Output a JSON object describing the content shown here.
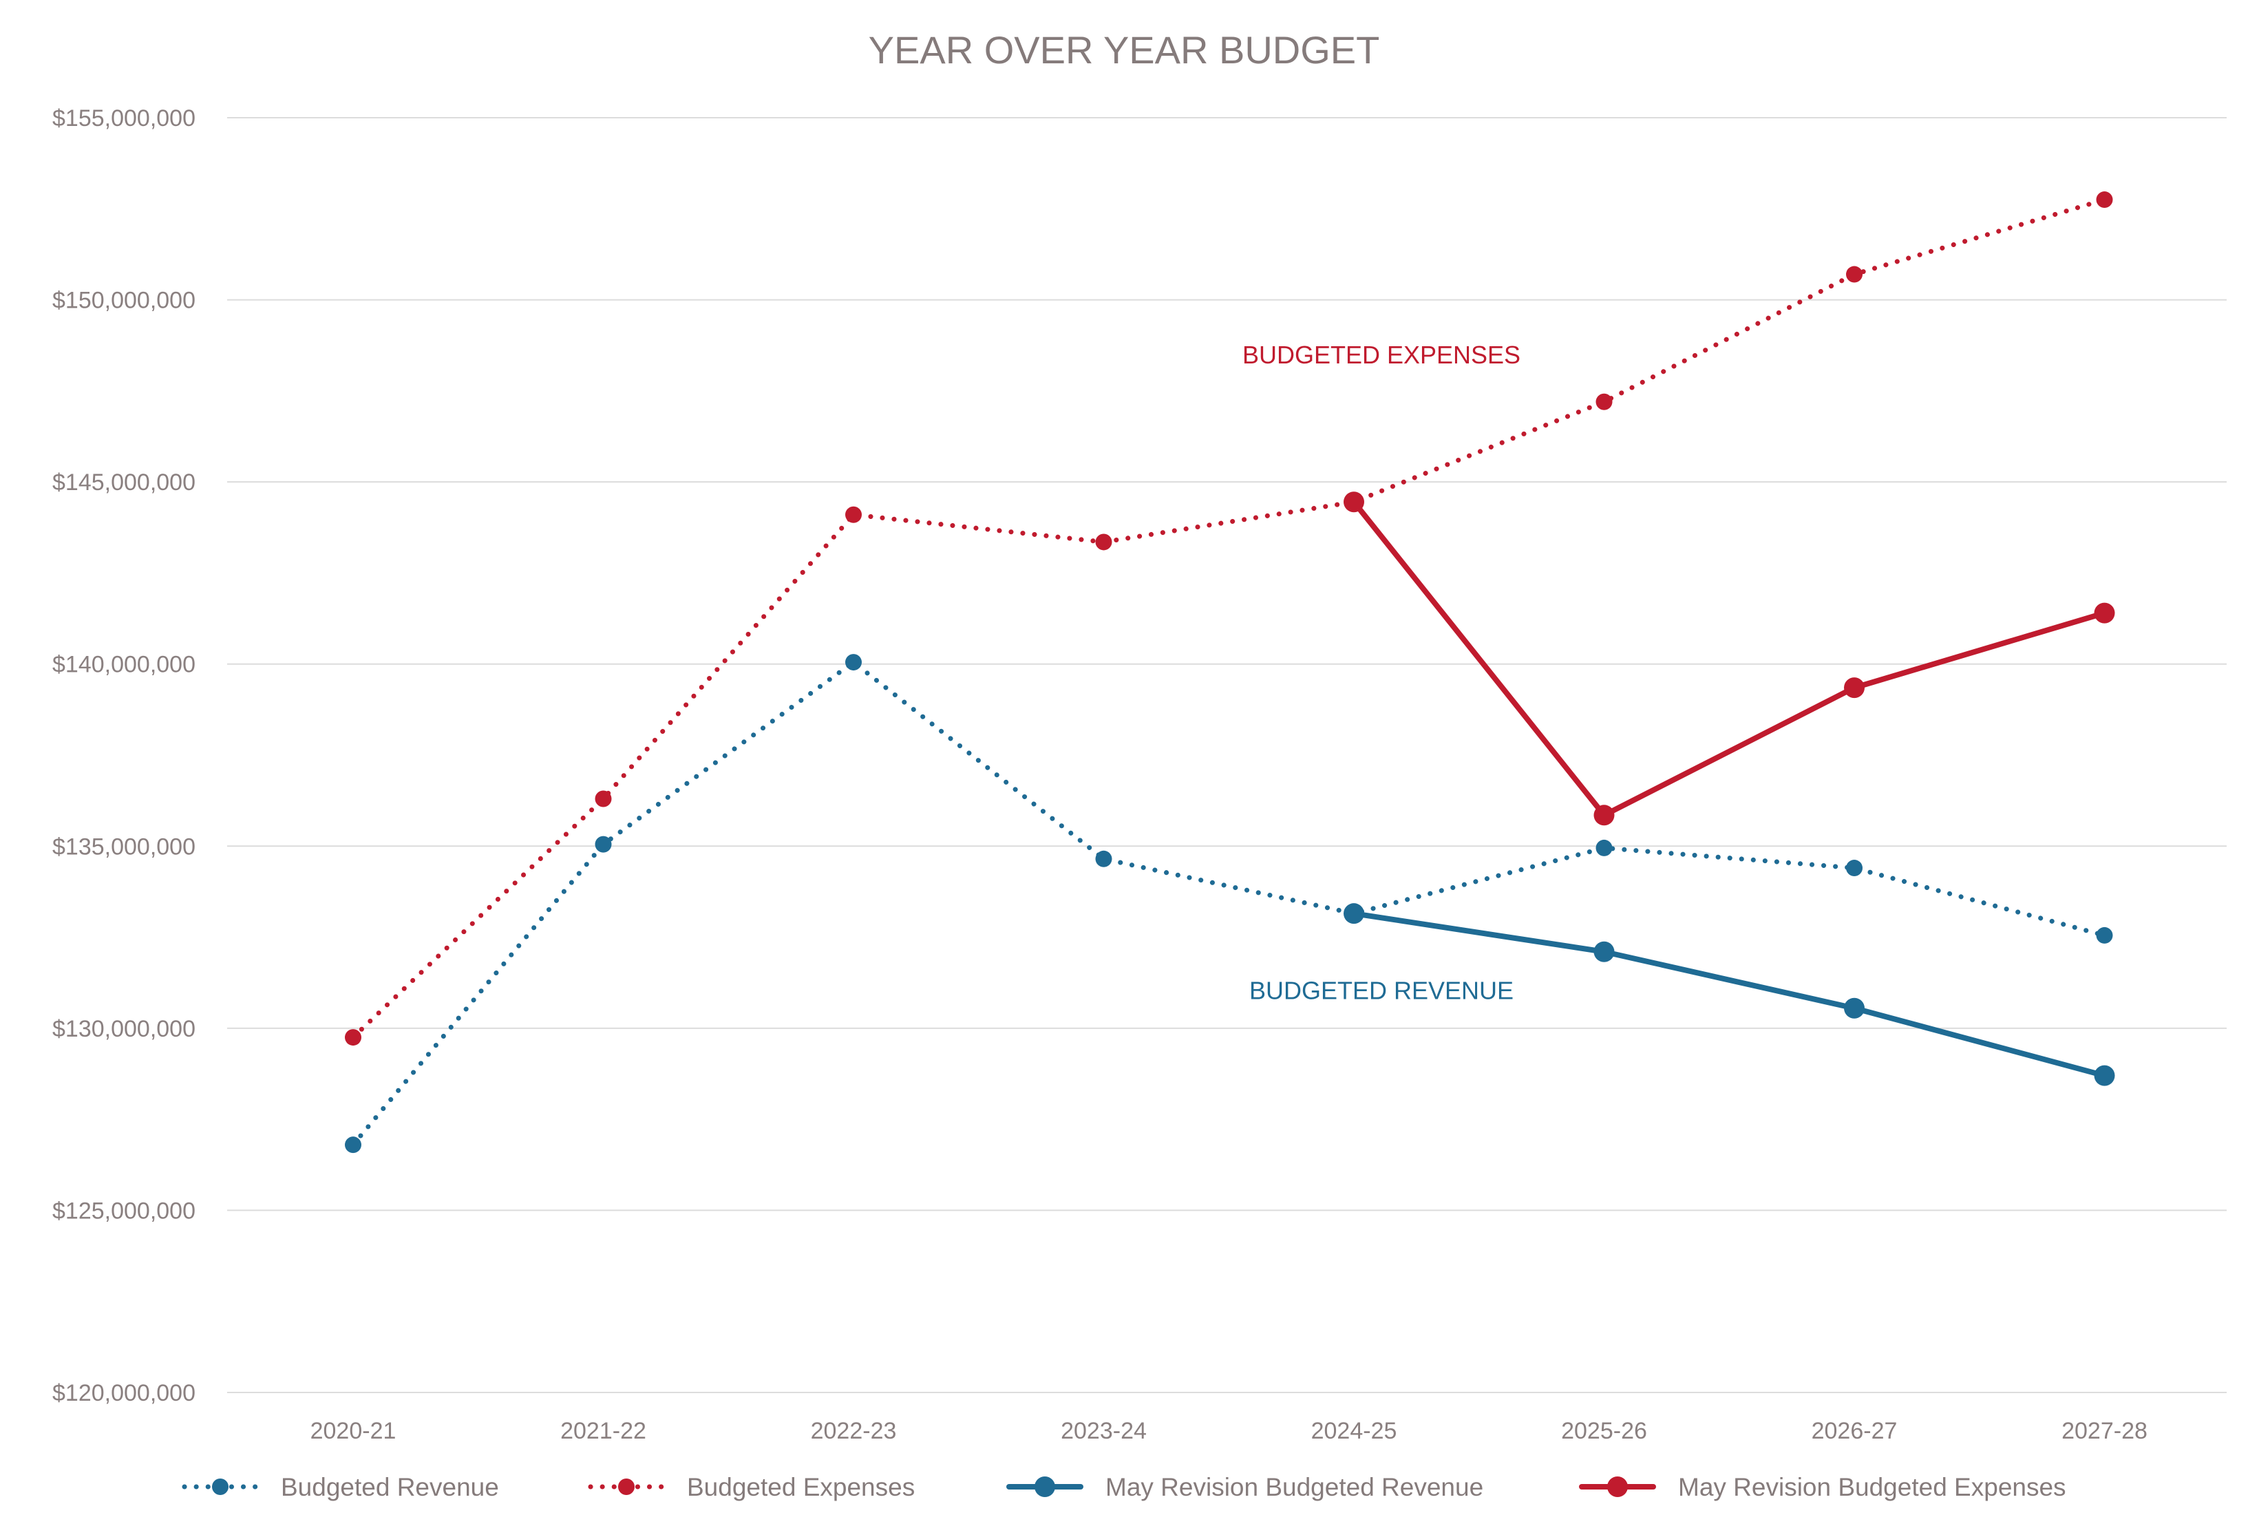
{
  "colors": {
    "revenue": "#1f6b94",
    "expenses": "#c01b2e",
    "grid": "#dcdcdc",
    "text": "#857b7b"
  },
  "chart_data": {
    "type": "line",
    "title": "YEAR OVER YEAR BUDGET",
    "xlabel": "",
    "ylabel": "",
    "categories": [
      "2020-21",
      "2021-22",
      "2022-23",
      "2023-24",
      "2024-25",
      "2025-26",
      "2026-27",
      "2027-28"
    ],
    "ylim": [
      120000000,
      155000000
    ],
    "yticks": [
      120000000,
      125000000,
      130000000,
      135000000,
      140000000,
      145000000,
      150000000,
      155000000
    ],
    "ytick_labels": [
      "$120,000,000",
      "$125,000,000",
      "$130,000,000",
      "$135,000,000",
      "$140,000,000",
      "$145,000,000",
      "$150,000,000",
      "$155,000,000"
    ],
    "grid": true,
    "legend_position": "bottom",
    "series": [
      {
        "name": "Budgeted Revenue",
        "style": "dotted",
        "color": "#1f6b94",
        "values": [
          126800000,
          135050000,
          140050000,
          134650000,
          133150000,
          134950000,
          134400000,
          132550000
        ]
      },
      {
        "name": "Budgeted Expenses",
        "style": "dotted",
        "color": "#c01b2e",
        "values": [
          129750000,
          136300000,
          144100000,
          143350000,
          144450000,
          147200000,
          150700000,
          152750000
        ]
      },
      {
        "name": "May Revision Budgeted Revenue",
        "style": "solid",
        "color": "#1f6b94",
        "values": [
          null,
          null,
          null,
          null,
          133150000,
          132100000,
          130550000,
          128700000
        ]
      },
      {
        "name": "May Revision Budgeted Expenses",
        "style": "solid",
        "color": "#c01b2e",
        "values": [
          null,
          null,
          null,
          null,
          144450000,
          135850000,
          139350000,
          141400000
        ]
      }
    ],
    "annotations": [
      {
        "text": "BUDGETED EXPENSES",
        "color": "#c01b2e",
        "anchor_category": "2024-25",
        "anchor_value": 148500000
      },
      {
        "text": "BUDGETED REVENUE",
        "color": "#1f6b94",
        "anchor_category": "2024-25",
        "anchor_value": 131050000
      }
    ]
  }
}
